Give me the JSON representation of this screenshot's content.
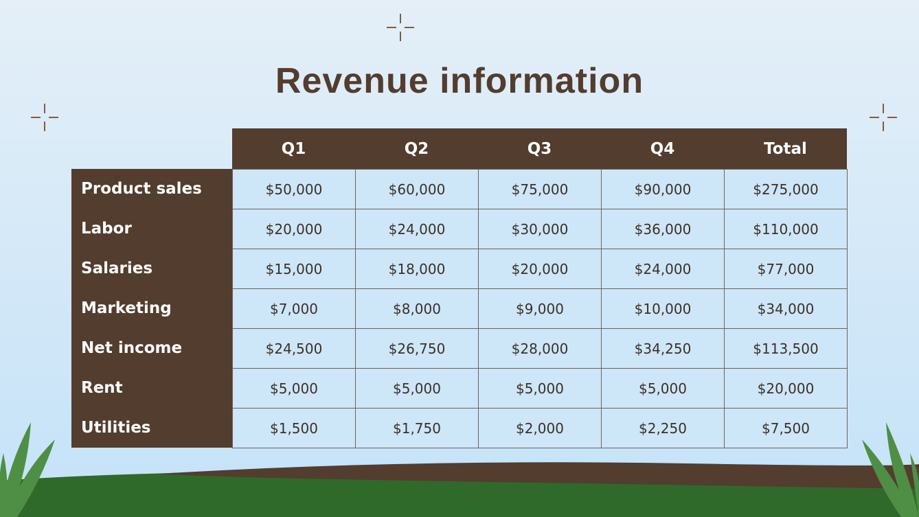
{
  "title": "Revenue information",
  "table": {
    "header": [
      "Q1",
      "Q2",
      "Q3",
      "Q4",
      "Total"
    ],
    "rows": [
      {
        "label": "Product sales",
        "cells": [
          "$50,000",
          "$60,000",
          "$75,000",
          "$90,000",
          "$275,000"
        ]
      },
      {
        "label": "Labor",
        "cells": [
          "$20,000",
          "$24,000",
          "$30,000",
          "$36,000",
          "$110,000"
        ]
      },
      {
        "label": "Salaries",
        "cells": [
          "$15,000",
          "$18,000",
          "$20,000",
          "$24,000",
          "$77,000"
        ]
      },
      {
        "label": "Marketing",
        "cells": [
          "$7,000",
          "$8,000",
          "$9,000",
          "$10,000",
          "$34,000"
        ]
      },
      {
        "label": "Net income",
        "cells": [
          "$24,500",
          "$26,750",
          "$28,000",
          "$34,250",
          "$113,500"
        ]
      },
      {
        "label": "Rent",
        "cells": [
          "$5,000",
          "$5,000",
          "$5,000",
          "$5,000",
          "$20,000"
        ]
      },
      {
        "label": "Utilities",
        "cells": [
          "$1,500",
          "$1,750",
          "$2,000",
          "$2,250",
          "$7,500"
        ]
      }
    ]
  }
}
